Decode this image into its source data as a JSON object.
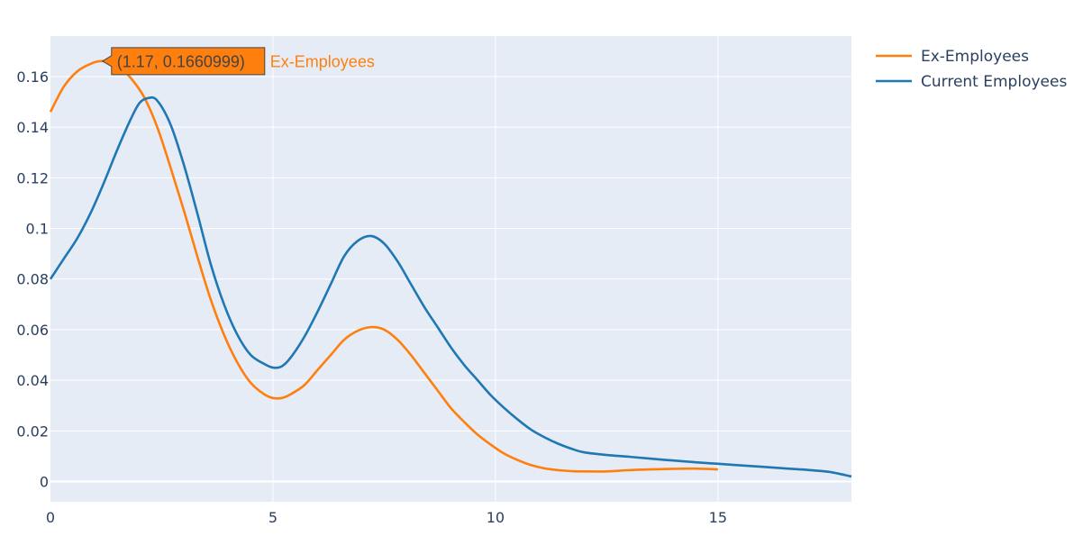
{
  "chart_data": {
    "type": "line",
    "title": "",
    "xlabel": "",
    "ylabel": "",
    "xlim": [
      0,
      18
    ],
    "ylim": [
      -0.008,
      0.176
    ],
    "x_ticks": [
      0,
      5,
      10,
      15
    ],
    "x_tick_labels": [
      "0",
      "5",
      "10",
      "15"
    ],
    "y_ticks": [
      0,
      0.02,
      0.04,
      0.06,
      0.08,
      0.1,
      0.12,
      0.14,
      0.16
    ],
    "y_tick_labels": [
      "0",
      "0.02",
      "0.04",
      "0.06",
      "0.08",
      "0.1",
      "0.12",
      "0.14",
      "0.16"
    ],
    "grid": true,
    "legend_position": "top-right",
    "series": [
      {
        "name": "Ex-Employees",
        "color": "#ff7f0e",
        "x": [
          0,
          0.3,
          0.6,
          0.9,
          1.17,
          1.5,
          1.8,
          2.1,
          2.4,
          2.7,
          3.0,
          3.3,
          3.6,
          3.9,
          4.2,
          4.5,
          4.8,
          5.0,
          5.2,
          5.4,
          5.7,
          6.0,
          6.3,
          6.6,
          6.9,
          7.2,
          7.5,
          7.8,
          8.1,
          8.4,
          8.7,
          9.0,
          9.3,
          9.6,
          9.9,
          10.2,
          10.5,
          10.8,
          11.1,
          11.4,
          11.7,
          12.0,
          12.5,
          13.0,
          13.5,
          14.0,
          14.5,
          15.0
        ],
        "y": [
          0.146,
          0.156,
          0.162,
          0.165,
          0.1660999,
          0.1645,
          0.1595,
          0.152,
          0.14,
          0.124,
          0.107,
          0.089,
          0.072,
          0.058,
          0.047,
          0.039,
          0.0345,
          0.033,
          0.033,
          0.0345,
          0.038,
          0.044,
          0.05,
          0.056,
          0.0595,
          0.061,
          0.06,
          0.056,
          0.05,
          0.043,
          0.036,
          0.029,
          0.0235,
          0.0185,
          0.0145,
          0.011,
          0.0085,
          0.0065,
          0.0052,
          0.0045,
          0.0041,
          0.004,
          0.004,
          0.0045,
          0.0048,
          0.005,
          0.0051,
          0.0048
        ]
      },
      {
        "name": "Current Employees",
        "color": "#1f77b4",
        "x": [
          0,
          0.3,
          0.6,
          0.9,
          1.2,
          1.5,
          1.8,
          2.0,
          2.2,
          2.4,
          2.7,
          3.0,
          3.3,
          3.6,
          3.9,
          4.2,
          4.5,
          4.8,
          5.0,
          5.2,
          5.4,
          5.7,
          6.0,
          6.3,
          6.6,
          6.9,
          7.2,
          7.5,
          7.8,
          8.1,
          8.4,
          8.7,
          9.0,
          9.3,
          9.6,
          9.9,
          10.2,
          10.5,
          10.8,
          11.1,
          11.4,
          11.7,
          12.0,
          12.5,
          13.0,
          13.5,
          14.0,
          14.5,
          15.0,
          15.5,
          16.0,
          16.5,
          17.0,
          17.5,
          18.0
        ],
        "y": [
          0.08,
          0.088,
          0.096,
          0.106,
          0.118,
          0.131,
          0.143,
          0.1495,
          0.1515,
          0.1505,
          0.141,
          0.125,
          0.106,
          0.086,
          0.07,
          0.058,
          0.05,
          0.0465,
          0.045,
          0.0455,
          0.049,
          0.057,
          0.067,
          0.078,
          0.089,
          0.095,
          0.097,
          0.094,
          0.087,
          0.078,
          0.069,
          0.061,
          0.053,
          0.046,
          0.04,
          0.034,
          0.029,
          0.0245,
          0.0205,
          0.0175,
          0.015,
          0.013,
          0.0115,
          0.0105,
          0.0098,
          0.009,
          0.0083,
          0.0076,
          0.007,
          0.0064,
          0.0058,
          0.0052,
          0.0046,
          0.0038,
          0.002
        ]
      }
    ],
    "hover": {
      "series": "Ex-Employees",
      "x": 1.17,
      "y": 0.1660999,
      "label": "(1.17, 0.1660999)",
      "name_label": "Ex-Employees"
    }
  }
}
